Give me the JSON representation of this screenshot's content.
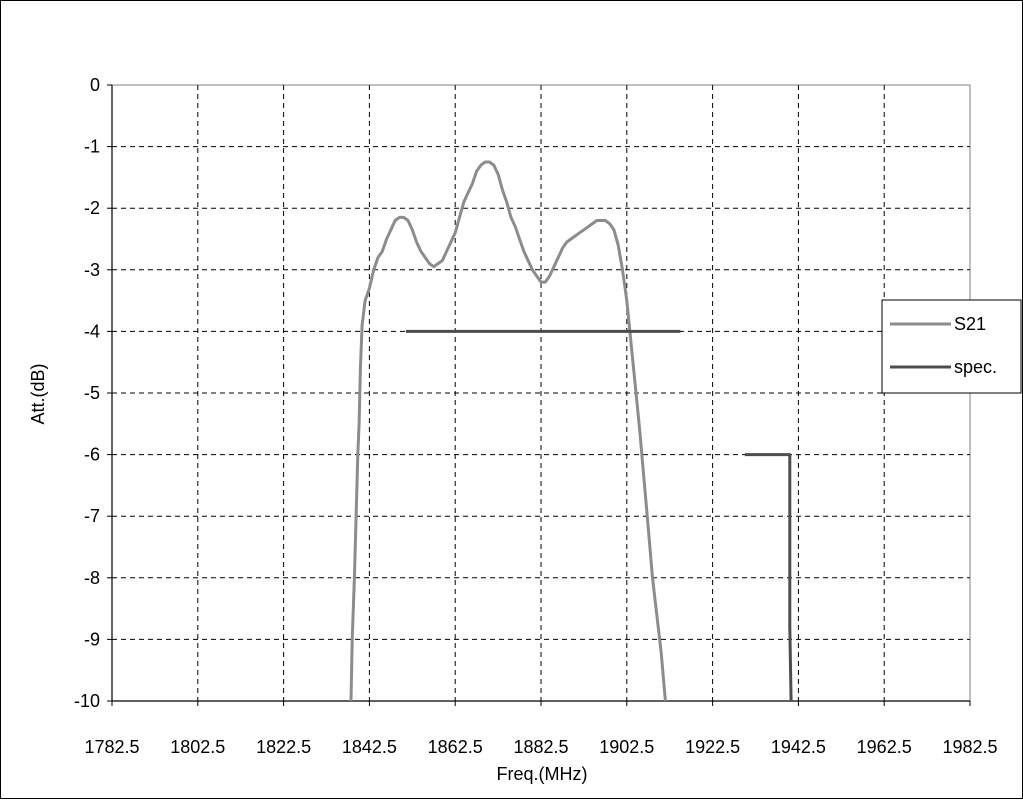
{
  "chart_data": {
    "type": "line",
    "title": "",
    "xlabel": "Freq.(MHz)",
    "ylabel": "Att.(dB)",
    "xlim": [
      1782.5,
      1982.5
    ],
    "ylim": [
      -10,
      0
    ],
    "x_ticks": [
      "1782.5",
      "1802.5",
      "1822.5",
      "1842.5",
      "1862.5",
      "1882.5",
      "1902.5",
      "1922.5",
      "1942.5",
      "1962.5",
      "1982.5"
    ],
    "y_ticks": [
      "0",
      "-1",
      "-2",
      "-3",
      "-4",
      "-5",
      "-6",
      "-7",
      "-8",
      "-9",
      "-10"
    ],
    "grid": true,
    "legend_position": "right",
    "series": [
      {
        "name": "S21",
        "color": "#8c8c8c",
        "x": [
          1838.2,
          1838.5,
          1839.0,
          1839.4,
          1839.8,
          1840.1,
          1840.4,
          1840.8,
          1841.5,
          1842.5,
          1843.5,
          1844.5,
          1845.5,
          1846.5,
          1847.5,
          1848.5,
          1849.5,
          1850.5,
          1851.5,
          1852.5,
          1853.5,
          1854.5,
          1855.5,
          1856.5,
          1857.5,
          1858.5,
          1859.5,
          1860.5,
          1861.5,
          1862.5,
          1863.5,
          1864.5,
          1865.5,
          1866.5,
          1867.5,
          1868.5,
          1869.5,
          1870.5,
          1871.5,
          1872.5,
          1873.5,
          1874.5,
          1875.5,
          1876.5,
          1877.5,
          1878.5,
          1879.5,
          1880.5,
          1881.5,
          1882.5,
          1883.5,
          1884.5,
          1885.5,
          1886.5,
          1887.5,
          1888.5,
          1889.5,
          1890.5,
          1891.5,
          1892.5,
          1893.5,
          1894.5,
          1895.5,
          1896.5,
          1897.5,
          1898.5,
          1899.5,
          1900.5,
          1901.5,
          1902.5,
          1903.5,
          1904.5,
          1905.5,
          1906.5,
          1907.5,
          1908.5,
          1909.5,
          1910.5,
          1911.5,
          1912.5,
          1913.5,
          1914.5,
          1915.5,
          1916.5,
          1917.0,
          1917.5,
          1918.0,
          1918.5,
          1919.0,
          1919.5,
          1920.0,
          1920.5,
          1921.0,
          1921.5,
          1922.0,
          1922.5,
          1923.0,
          1923.5,
          1924.0,
          1924.5,
          1925.0,
          1925.5,
          1926.0,
          1926.5,
          1927.0
        ],
        "y": [
          -10,
          -9.0,
          -8.0,
          -7.0,
          -6.0,
          -5.5,
          -4.6,
          -3.9,
          -3.5,
          -3.3,
          -3.0,
          -2.8,
          -2.7,
          -2.5,
          -2.35,
          -2.2,
          -2.15,
          -2.15,
          -2.2,
          -2.35,
          -2.55,
          -2.7,
          -2.8,
          -2.9,
          -2.95,
          -2.9,
          -2.85,
          -2.7,
          -2.55,
          -2.4,
          -2.15,
          -1.9,
          -1.75,
          -1.6,
          -1.4,
          -1.3,
          -1.25,
          -1.25,
          -1.3,
          -1.45,
          -1.7,
          -1.9,
          -2.15,
          -2.3,
          -2.5,
          -2.7,
          -2.85,
          -3.0,
          -3.1,
          -3.2,
          -3.2,
          -3.1,
          -2.95,
          -2.8,
          -2.65,
          -2.55,
          -2.5,
          -2.45,
          -2.4,
          -2.35,
          -2.3,
          -2.25,
          -2.2,
          -2.2,
          -2.2,
          -2.25,
          -2.35,
          -2.6,
          -3.0,
          -3.5,
          -4.2,
          -4.9,
          -5.6,
          -6.4,
          -7.2,
          -8.0,
          -8.6,
          -9.2,
          -10,
          null,
          null,
          null,
          null,
          null,
          null,
          null,
          null,
          null,
          null,
          null,
          null,
          null,
          null,
          null,
          null,
          null,
          null,
          null,
          null,
          null,
          null,
          null,
          null,
          null,
          null
        ]
      },
      {
        "name": "spec.",
        "color": "#4d4d4d",
        "segments": [
          {
            "x": [
              1851.0,
              1915.0
            ],
            "y": [
              -4,
              -4
            ]
          },
          {
            "x": [
              1930.0,
              1940.5,
              1940.5,
              1940.8
            ],
            "y": [
              -6,
              -6,
              -8.8,
              -10
            ]
          }
        ]
      }
    ]
  }
}
